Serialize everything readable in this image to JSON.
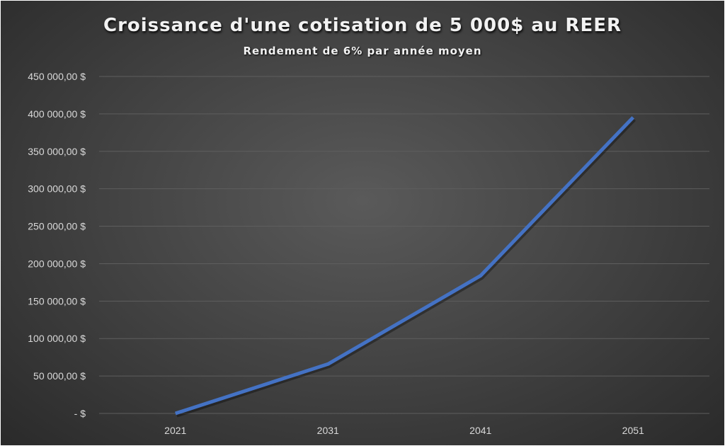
{
  "chart_data": {
    "type": "line",
    "title": "Croissance d'une cotisation de 5 000$ au REER",
    "subtitle": "Rendement de 6% par année moyen",
    "categories": [
      "2021",
      "2031",
      "2041",
      "2051"
    ],
    "series": [
      {
        "values": [
          0,
          65900,
          183900,
          395300
        ],
        "color": "#4472C4"
      }
    ],
    "ylim": [
      0,
      450000
    ],
    "y_ticks": [
      0,
      50000,
      100000,
      150000,
      200000,
      250000,
      300000,
      350000,
      400000,
      450000
    ],
    "y_tick_labels": [
      "-   $",
      "50 000,00  $",
      "100 000,00  $",
      "150 000,00  $",
      "200 000,00  $",
      "250 000,00  $",
      "300 000,00  $",
      "350 000,00  $",
      "400 000,00  $",
      "450 000,00  $"
    ],
    "grid": true,
    "legend": "none"
  }
}
